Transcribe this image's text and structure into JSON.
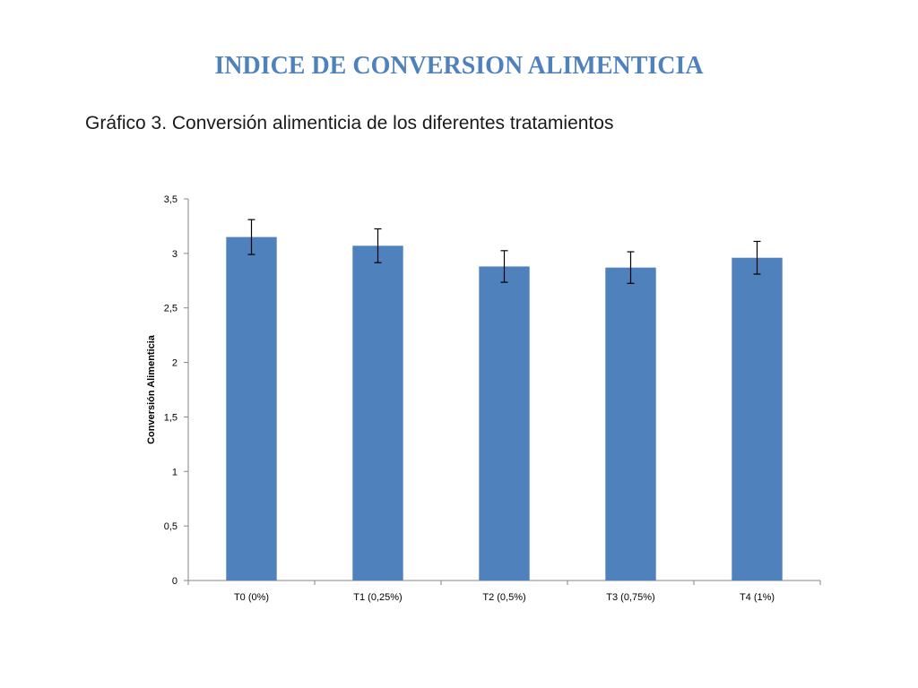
{
  "slide": {
    "title": "INDICE DE CONVERSION ALIMENTICIA",
    "subtitle": "Gráfico 3. Conversión alimenticia de los diferentes tratamientos"
  },
  "colors": {
    "bar": "#4f81bd",
    "title": "#4f81bd",
    "axis": "#868686"
  },
  "chart_data": {
    "type": "bar",
    "title": "",
    "xlabel": "",
    "ylabel": "Conversión Alimenticia",
    "categories": [
      "T0 (0%)",
      "T1 (0,25%)",
      "T2 (0,5%)",
      "T3 (0,75%)",
      "T4 (1%)"
    ],
    "values": [
      3.15,
      3.07,
      2.88,
      2.87,
      2.96
    ],
    "error": [
      0.16,
      0.155,
      0.145,
      0.145,
      0.15
    ],
    "ylim": [
      0,
      3.5
    ],
    "yticks": [
      0,
      0.5,
      1,
      1.5,
      2,
      2.5,
      3,
      3.5
    ],
    "ytick_labels": [
      "0",
      "0,5",
      "1",
      "1,5",
      "2",
      "2,5",
      "3",
      "3,5"
    ],
    "grid": false,
    "legend": "none"
  }
}
